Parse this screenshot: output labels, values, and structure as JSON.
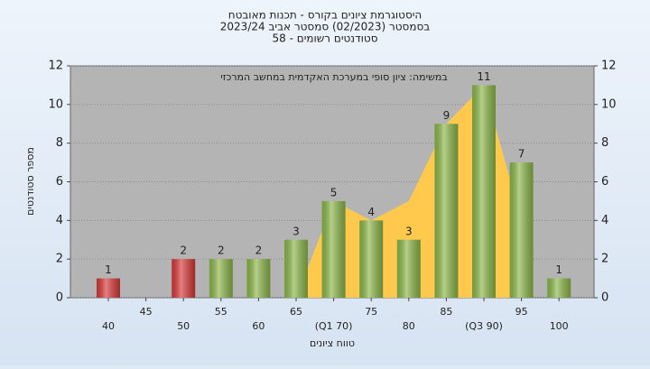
{
  "chart_data": {
    "type": "bar",
    "title": "היסטוגרמת ציונים בקורס - תכנות מאובטח",
    "subtitle": "בסמסטר  (02/2023)  סמסטר אביב 2023/24",
    "subtitle2": "סטודנטים רשומים - 58",
    "annotation": "במשימה: ציון סופי במערכת האקדמית במחשב המרכזי",
    "x_label": "טווח ציונים",
    "y_label": "מספר סטודנטים",
    "categories": [
      "40",
      "45",
      "50",
      "55",
      "60",
      "65",
      "(Q1 70)",
      "75",
      "80",
      "85",
      "(Q3 90)",
      "95",
      "100"
    ],
    "series": [
      {
        "values": [
          1,
          0,
          2,
          2,
          2,
          3,
          5,
          4,
          3,
          9,
          11,
          7,
          1
        ],
        "colors": [
          "#d93a3a",
          "#d93a3a",
          "#d93a3a",
          "#8db84a",
          "#8db84a",
          "#8db84a",
          "#8db84a",
          "#8db84a",
          "#8db84a",
          "#8db84a",
          "#8db84a",
          "#8db84a",
          "#8db84a"
        ]
      },
      {
        "type": "area",
        "color": "#ffc94d",
        "values": [
          null,
          null,
          null,
          null,
          null,
          0,
          5,
          4,
          5,
          9,
          11,
          4,
          null
        ]
      }
    ],
    "ylim": [
      0,
      12
    ],
    "yticks": [
      0,
      2,
      4,
      6,
      8,
      10,
      12
    ],
    "y2lim": [
      0,
      12
    ],
    "y2ticks": [
      0,
      2,
      4,
      6,
      8,
      10,
      12
    ],
    "grid": true
  }
}
